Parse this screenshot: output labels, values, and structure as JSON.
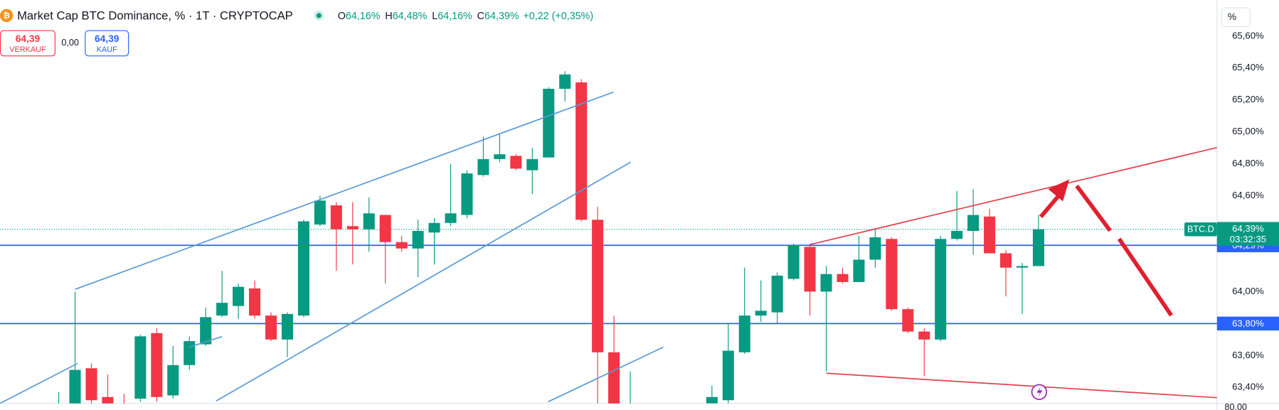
{
  "chart_data": {
    "type": "candlestick",
    "title": "Market Cap BTC Dominance, % · 1T · CRYPTOCAP",
    "ohlc_legend": [
      {
        "key": "O",
        "text": "64,16%"
      },
      {
        "key": "H",
        "text": "64,48%"
      },
      {
        "key": "L",
        "text": "64,16%"
      },
      {
        "key": "C",
        "text": "64,39%"
      }
    ],
    "change": "+0,22 (+0,35%)",
    "up_color": "#089981",
    "down_color": "#f23645",
    "open": [
      63.22,
      63.28,
      63.52,
      63.34,
      63.3,
      63.33,
      63.74,
      63.35,
      63.54,
      63.67,
      63.85,
      63.91,
      64.02,
      63.85,
      63.7,
      63.85,
      64.42,
      64.54,
      64.41,
      64.39,
      64.48,
      64.31,
      64.27,
      64.37,
      64.43,
      64.48,
      64.73,
      64.83,
      64.85,
      64.76,
      64.84,
      65.27,
      65.31,
      64.45,
      63.62,
      63.22,
      null,
      null,
      null,
      null,
      63.3,
      63.32,
      63.62,
      63.85,
      63.87,
      64.08,
      64.28,
      64.0,
      64.11,
      64.06,
      64.2,
      64.33,
      63.89,
      63.75,
      63.7,
      64.33,
      64.38,
      64.47,
      64.24,
      64.15,
      64.16
    ],
    "high": [
      63.37,
      64.0,
      63.55,
      63.48,
      63.36,
      63.73,
      63.77,
      63.66,
      63.72,
      63.9,
      64.13,
      64.05,
      64.07,
      63.87,
      63.87,
      64.45,
      64.6,
      64.56,
      64.56,
      64.59,
      64.48,
      64.35,
      64.45,
      64.46,
      64.8,
      64.76,
      64.97,
      64.99,
      64.86,
      64.9,
      65.28,
      65.38,
      65.33,
      64.53,
      63.85,
      63.5,
      null,
      null,
      null,
      null,
      63.41,
      63.8,
      64.15,
      64.07,
      64.12,
      64.3,
      64.3,
      64.16,
      64.15,
      64.35,
      64.39,
      64.34,
      63.9,
      63.77,
      64.35,
      64.63,
      64.64,
      64.52,
      64.26,
      64.18,
      64.48
    ],
    "low": [
      63.18,
      63.25,
      63.29,
      63.22,
      63.2,
      63.31,
      63.31,
      63.33,
      63.51,
      63.66,
      63.84,
      63.83,
      63.83,
      63.69,
      63.59,
      63.84,
      64.41,
      64.13,
      64.17,
      64.25,
      64.05,
      64.25,
      64.09,
      64.17,
      64.41,
      64.46,
      64.72,
      64.81,
      64.76,
      64.61,
      64.84,
      65.19,
      64.44,
      63.25,
      63.2,
      63.15,
      null,
      null,
      null,
      null,
      63.25,
      63.3,
      63.61,
      63.81,
      63.8,
      64.07,
      63.85,
      63.5,
      64.05,
      64.06,
      64.15,
      63.88,
      63.74,
      63.47,
      63.69,
      64.32,
      64.23,
      64.24,
      63.97,
      63.86,
      64.16
    ],
    "close": [
      63.27,
      63.51,
      63.32,
      63.28,
      63.24,
      63.72,
      63.34,
      63.54,
      63.69,
      63.84,
      63.93,
      64.03,
      63.85,
      63.7,
      63.86,
      64.44,
      64.57,
      64.39,
      64.39,
      64.49,
      64.31,
      64.27,
      64.38,
      64.43,
      64.49,
      64.74,
      64.83,
      64.86,
      64.77,
      64.83,
      65.27,
      65.36,
      64.45,
      63.62,
      63.25,
      63.28,
      null,
      null,
      null,
      null,
      63.34,
      63.63,
      63.85,
      63.88,
      64.1,
      64.29,
      64.0,
      64.11,
      64.06,
      64.2,
      64.34,
      63.89,
      63.75,
      63.7,
      64.33,
      64.38,
      64.48,
      64.24,
      64.15,
      64.16,
      64.39
    ],
    "ylim": [
      63.3,
      65.8
    ],
    "yticks": [
      {
        "value": 65.6,
        "label": "65,60%"
      },
      {
        "value": 65.4,
        "label": "65,40%"
      },
      {
        "value": 65.2,
        "label": "65,20%"
      },
      {
        "value": 65.0,
        "label": "65,00%"
      },
      {
        "value": 64.8,
        "label": "64,80%"
      },
      {
        "value": 64.6,
        "label": "64,60%"
      },
      {
        "value": 64.0,
        "label": "64,00%"
      },
      {
        "value": 63.6,
        "label": "63,60%"
      },
      {
        "value": 63.4,
        "label": "63,40%"
      }
    ],
    "axis_unit": "%",
    "bottom_label": "80,00",
    "hlines": [
      {
        "value": 64.29,
        "label": "64,29%",
        "color": "#2962ff"
      },
      {
        "value": 63.8,
        "label": "63,80%",
        "color": "#2962ff"
      }
    ],
    "last_price": {
      "value": 64.39,
      "label": "64,39%",
      "symbol": "BTC.D",
      "countdown": "03:32:35",
      "color": "#089981"
    }
  },
  "ui": {
    "sell": {
      "price": "64,39",
      "label": "VERKAUF"
    },
    "spread": "0,00",
    "buy": {
      "price": "64,39",
      "label": "KAUF"
    }
  }
}
